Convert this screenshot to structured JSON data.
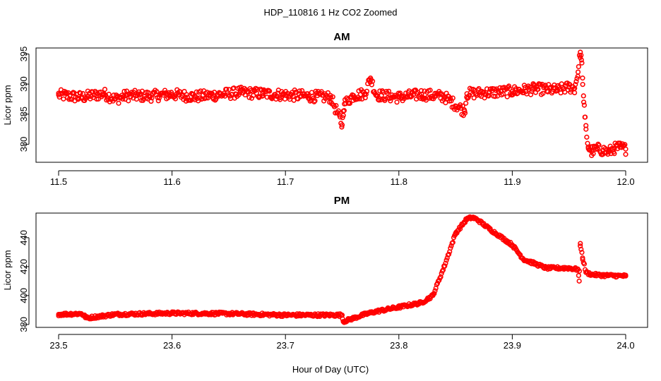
{
  "figure": {
    "title": "HDP_110816  1 Hz CO2 Zoomed",
    "xlabel": "Hour of Day (UTC)"
  },
  "colors": {
    "points": "#ff0000",
    "axes": "#000000",
    "background": "#ffffff"
  },
  "chart_data": [
    {
      "type": "scatter",
      "title": "AM",
      "xlabel": "Hour of Day (UTC)",
      "ylabel": "Licor ppm",
      "xlim": [
        11.5,
        12.0
      ],
      "ylim": [
        377,
        396
      ],
      "x_ticks": [
        "11.5",
        "11.6",
        "11.7",
        "11.8",
        "11.9",
        "12.0"
      ],
      "y_ticks": [
        "380",
        "385",
        "390",
        "395"
      ],
      "marker": "open-circle",
      "grid": false,
      "legend": "none",
      "series": [
        {
          "x": [
            11.5,
            11.52,
            11.54,
            11.55,
            11.56,
            11.58,
            11.6,
            11.62,
            11.64,
            11.66,
            11.68,
            11.7,
            11.72,
            11.74,
            11.75,
            11.751,
            11.752,
            11.76,
            11.77,
            11.775,
            11.78,
            11.8,
            11.82,
            11.84,
            11.858,
            11.86,
            11.88,
            11.9,
            11.92,
            11.94,
            11.95,
            11.955,
            11.958,
            11.96,
            11.961,
            11.962,
            11.963,
            11.964,
            11.965,
            11.967,
            11.97,
            11.975,
            11.98,
            11.985,
            11.99,
            11.995,
            12.0
          ],
          "y": [
            388.2,
            387.8,
            388.4,
            387.5,
            388.1,
            388.0,
            388.3,
            387.9,
            388.2,
            388.6,
            388.4,
            388.2,
            388.0,
            387.8,
            383.2,
            385.5,
            386.7,
            388.1,
            388.4,
            391.0,
            388.2,
            387.8,
            388.3,
            387.9,
            385.5,
            388.4,
            388.6,
            388.8,
            389.2,
            389.0,
            389.5,
            389.3,
            392.0,
            395.3,
            394.0,
            391.0,
            387.0,
            384.5,
            382.5,
            379.5,
            378.8,
            379.2,
            379.0,
            378.7,
            379.3,
            379.5,
            379.2
          ]
        }
      ]
    },
    {
      "type": "scatter",
      "title": "PM",
      "xlabel": "Hour of Day (UTC)",
      "ylabel": "Licor ppm",
      "xlim": [
        23.5,
        24.0
      ],
      "ylim": [
        378,
        457
      ],
      "x_ticks": [
        "23.5",
        "23.6",
        "23.7",
        "23.8",
        "23.9",
        "24.0"
      ],
      "y_ticks": [
        "380",
        "400",
        "420",
        "440"
      ],
      "marker": "open-circle",
      "grid": false,
      "legend": "none",
      "series": [
        {
          "x": [
            23.5,
            23.52,
            23.525,
            23.55,
            23.6,
            23.65,
            23.7,
            23.75,
            23.751,
            23.77,
            23.78,
            23.8,
            23.82,
            23.83,
            23.84,
            23.85,
            23.86,
            23.865,
            23.87,
            23.88,
            23.9,
            23.91,
            23.93,
            23.95,
            23.958,
            23.959,
            23.96,
            23.962,
            23.965,
            23.97,
            23.98,
            24.0
          ],
          "y": [
            387.0,
            387.5,
            384.5,
            387.0,
            387.8,
            387.5,
            386.5,
            386.5,
            382.0,
            387.0,
            389.0,
            392.0,
            395.0,
            400.0,
            420.0,
            443.0,
            453.0,
            454.0,
            452.0,
            446.0,
            435.0,
            425.0,
            419.0,
            419.0,
            418.0,
            410.0,
            436.0,
            426.0,
            416.0,
            414.5,
            414.0,
            413.5
          ]
        }
      ]
    }
  ]
}
